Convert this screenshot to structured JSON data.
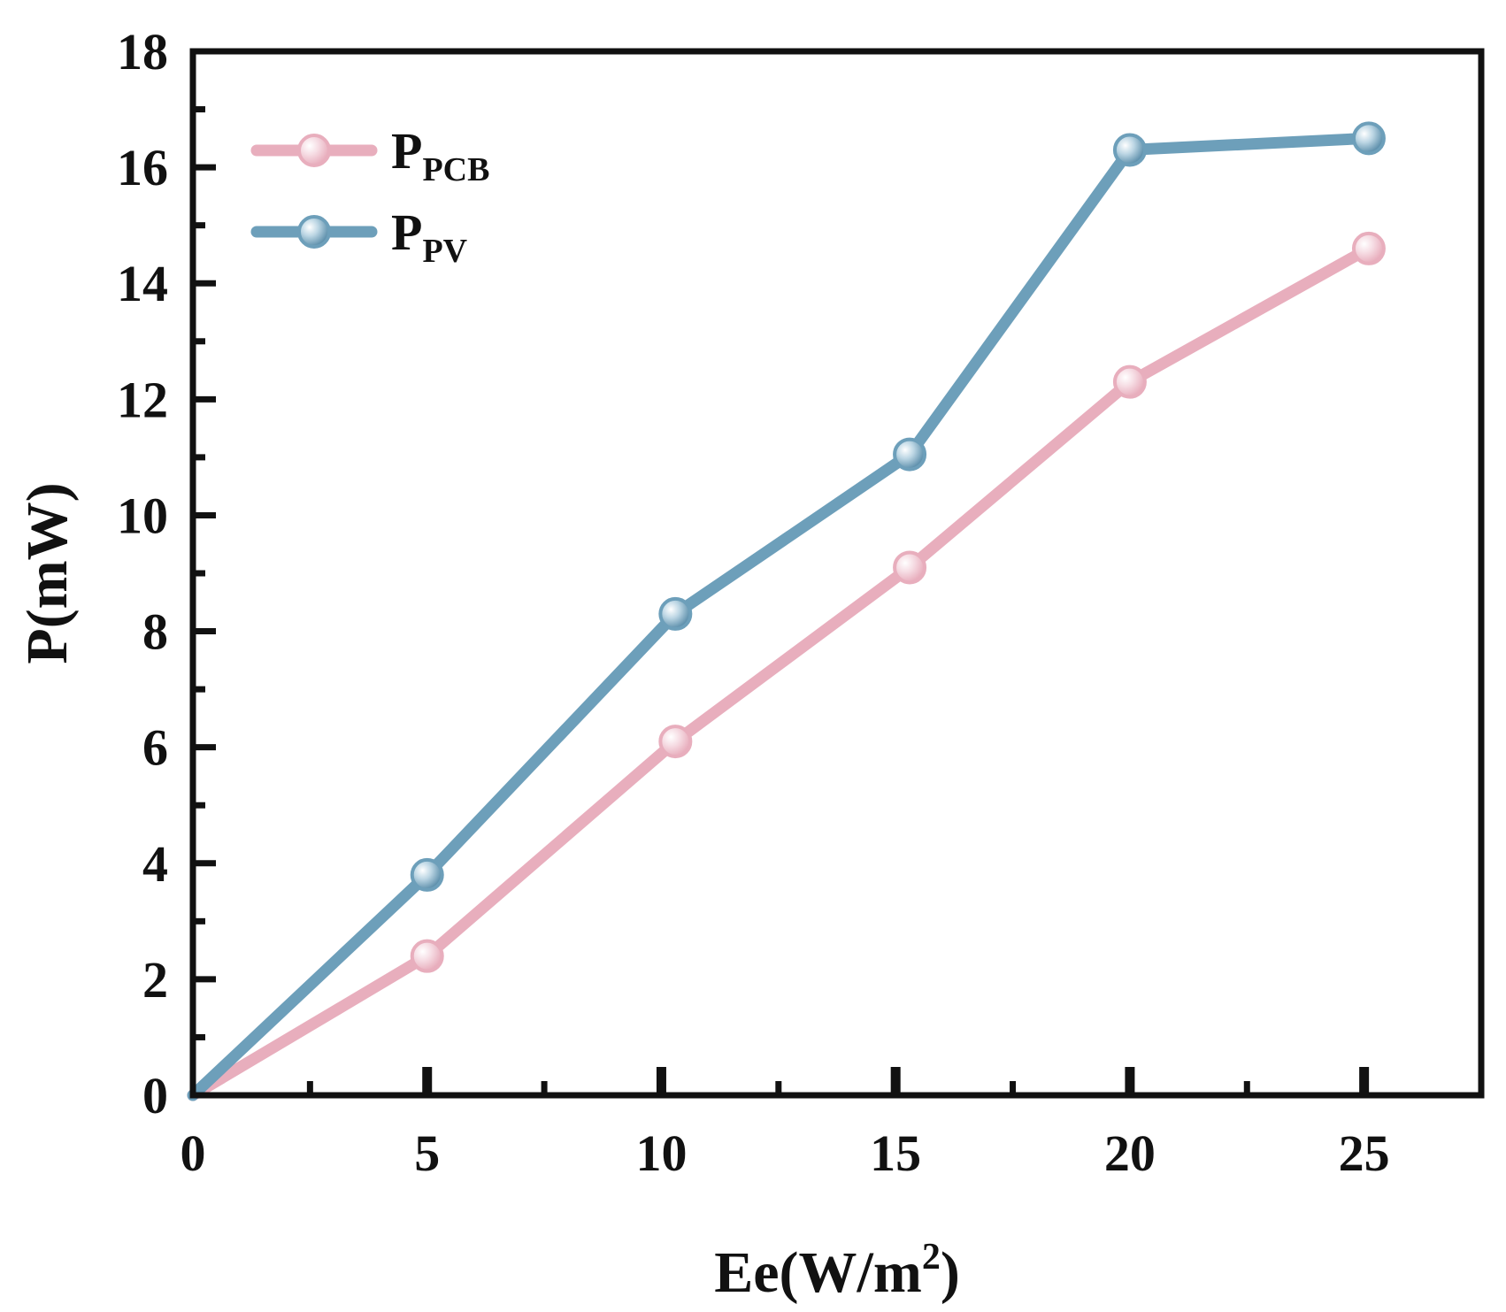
{
  "chart_data": {
    "type": "line",
    "title": "",
    "xlabel": {
      "base": "Ee(W/m",
      "sup": "2",
      "tail": ")"
    },
    "ylabel": "P(mW)",
    "xlim": [
      0,
      27.5
    ],
    "ylim": [
      0,
      18
    ],
    "xticks": [
      "0",
      "5",
      "10",
      "15",
      "20",
      "25"
    ],
    "yticks": [
      "0",
      "2",
      "4",
      "6",
      "8",
      "10",
      "12",
      "14",
      "16",
      "18"
    ],
    "grid": false,
    "legend_position": "top-left",
    "series": [
      {
        "name": "P",
        "sub": "PCB",
        "color": "#e8aebd",
        "x": [
          0,
          5,
          10.3,
          15.3,
          20,
          25.1
        ],
        "y": [
          0,
          2.4,
          6.1,
          9.1,
          12.3,
          14.6
        ]
      },
      {
        "name": "P",
        "sub": "PV",
        "color": "#6d9fba",
        "x": [
          0,
          5,
          10.3,
          15.3,
          20,
          25.1
        ],
        "y": [
          0,
          3.8,
          8.3,
          11.05,
          16.3,
          16.5
        ]
      }
    ]
  }
}
